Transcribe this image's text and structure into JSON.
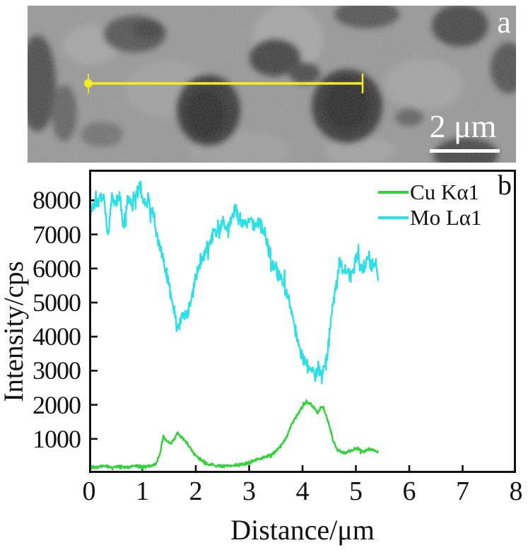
{
  "panels": {
    "a": {
      "label": "a",
      "scale_bar": {
        "text": "2 μm"
      },
      "line_scan_marker_color": "#f2ee1f"
    },
    "b": {
      "label": "b"
    }
  },
  "chart_data": {
    "type": "line",
    "title": "",
    "xlabel": "Distance/μm",
    "ylabel": "Intensity/cps",
    "xlim": [
      0,
      8
    ],
    "ylim": [
      0,
      8900
    ],
    "x_ticks": [
      0,
      1,
      2,
      3,
      4,
      5,
      6,
      7,
      8
    ],
    "y_ticks": [
      1000,
      2000,
      3000,
      4000,
      5000,
      6000,
      7000,
      8000
    ],
    "grid": false,
    "legend_position": "top-right",
    "series": [
      {
        "name": "Cu Kα1",
        "color": "#33d23a",
        "noise": 55,
        "seed": 42,
        "keypoints": [
          [
            0,
            190
          ],
          [
            0.15,
            170
          ],
          [
            0.3,
            200
          ],
          [
            0.45,
            160
          ],
          [
            0.6,
            190
          ],
          [
            0.75,
            170
          ],
          [
            0.9,
            200
          ],
          [
            1.05,
            180
          ],
          [
            1.15,
            220
          ],
          [
            1.25,
            260
          ],
          [
            1.33,
            540
          ],
          [
            1.39,
            1080
          ],
          [
            1.45,
            950
          ],
          [
            1.53,
            850
          ],
          [
            1.6,
            1000
          ],
          [
            1.66,
            1180
          ],
          [
            1.72,
            1050
          ],
          [
            1.77,
            1020
          ],
          [
            1.86,
            810
          ],
          [
            1.95,
            600
          ],
          [
            2.03,
            460
          ],
          [
            2.1,
            380
          ],
          [
            2.17,
            290
          ],
          [
            2.25,
            240
          ],
          [
            2.4,
            210
          ],
          [
            2.55,
            200
          ],
          [
            2.7,
            220
          ],
          [
            2.85,
            240
          ],
          [
            3.0,
            300
          ],
          [
            3.1,
            380
          ],
          [
            3.2,
            420
          ],
          [
            3.32,
            470
          ],
          [
            3.42,
            550
          ],
          [
            3.5,
            640
          ],
          [
            3.6,
            800
          ],
          [
            3.7,
            1050
          ],
          [
            3.8,
            1450
          ],
          [
            3.9,
            1700
          ],
          [
            4.0,
            1950
          ],
          [
            4.1,
            2080
          ],
          [
            4.17,
            2000
          ],
          [
            4.22,
            1900
          ],
          [
            4.28,
            1750
          ],
          [
            4.35,
            1950
          ],
          [
            4.42,
            1800
          ],
          [
            4.5,
            1400
          ],
          [
            4.58,
            900
          ],
          [
            4.65,
            680
          ],
          [
            4.72,
            620
          ],
          [
            4.8,
            600
          ],
          [
            4.9,
            650
          ],
          [
            5.0,
            730
          ],
          [
            5.08,
            680
          ],
          [
            5.15,
            620
          ],
          [
            5.22,
            700
          ],
          [
            5.3,
            680
          ],
          [
            5.37,
            650
          ],
          [
            5.43,
            640
          ]
        ]
      },
      {
        "name": "Mo Lα1",
        "color": "#2ce0e8",
        "noise": 270,
        "seed": 1337,
        "keypoints": [
          [
            0,
            7350
          ],
          [
            0.06,
            7850
          ],
          [
            0.12,
            8050
          ],
          [
            0.2,
            8000
          ],
          [
            0.28,
            8150
          ],
          [
            0.35,
            6900
          ],
          [
            0.42,
            8050
          ],
          [
            0.5,
            7950
          ],
          [
            0.58,
            8100
          ],
          [
            0.64,
            7150
          ],
          [
            0.72,
            8050
          ],
          [
            0.8,
            7950
          ],
          [
            0.88,
            8150
          ],
          [
            0.95,
            8450
          ],
          [
            1.02,
            7950
          ],
          [
            1.1,
            7900
          ],
          [
            1.2,
            7650
          ],
          [
            1.28,
            6800
          ],
          [
            1.35,
            6500
          ],
          [
            1.42,
            6000
          ],
          [
            1.5,
            5580
          ],
          [
            1.57,
            4900
          ],
          [
            1.62,
            4500
          ],
          [
            1.66,
            4250
          ],
          [
            1.72,
            4600
          ],
          [
            1.78,
            4500
          ],
          [
            1.85,
            4700
          ],
          [
            1.94,
            5230
          ],
          [
            2.02,
            5800
          ],
          [
            2.08,
            6200
          ],
          [
            2.15,
            6300
          ],
          [
            2.21,
            6620
          ],
          [
            2.28,
            6800
          ],
          [
            2.34,
            7030
          ],
          [
            2.42,
            7200
          ],
          [
            2.5,
            7350
          ],
          [
            2.6,
            7300
          ],
          [
            2.68,
            7500
          ],
          [
            2.74,
            7850
          ],
          [
            2.82,
            7400
          ],
          [
            2.9,
            7350
          ],
          [
            3.0,
            7400
          ],
          [
            3.1,
            7300
          ],
          [
            3.2,
            7250
          ],
          [
            3.3,
            7000
          ],
          [
            3.38,
            6500
          ],
          [
            3.45,
            6150
          ],
          [
            3.55,
            5850
          ],
          [
            3.63,
            5640
          ],
          [
            3.7,
            5350
          ],
          [
            3.76,
            5020
          ],
          [
            3.83,
            4500
          ],
          [
            3.89,
            4100
          ],
          [
            3.96,
            3510
          ],
          [
            4.03,
            3360
          ],
          [
            4.1,
            3150
          ],
          [
            4.17,
            3000
          ],
          [
            4.25,
            2900
          ],
          [
            4.31,
            3100
          ],
          [
            4.36,
            2800
          ],
          [
            4.42,
            3100
          ],
          [
            4.47,
            3500
          ],
          [
            4.51,
            4130
          ],
          [
            4.57,
            4960
          ],
          [
            4.64,
            5580
          ],
          [
            4.7,
            6300
          ],
          [
            4.76,
            5900
          ],
          [
            4.83,
            6000
          ],
          [
            4.9,
            5800
          ],
          [
            4.97,
            6100
          ],
          [
            5.03,
            6500
          ],
          [
            5.1,
            5900
          ],
          [
            5.17,
            6100
          ],
          [
            5.23,
            6400
          ],
          [
            5.3,
            6100
          ],
          [
            5.37,
            6200
          ],
          [
            5.43,
            5600
          ]
        ]
      }
    ]
  }
}
